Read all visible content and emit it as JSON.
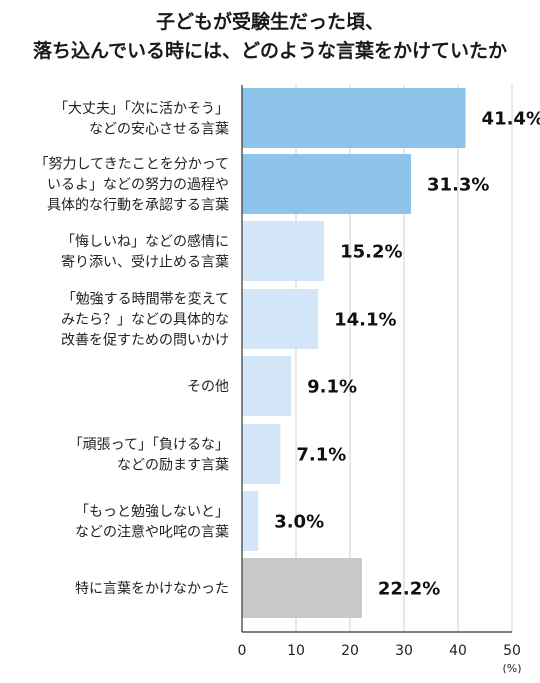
{
  "chart_data": {
    "type": "bar",
    "orientation": "horizontal",
    "title_lines": [
      "子どもが受験生だった頃、",
      "落ち込んでいる時には、どのような言葉をかけていたか"
    ],
    "categories": [
      [
        "「大丈夫」「次に活かそう」",
        "などの安心させる言葉"
      ],
      [
        "「努力してきたことを分かって",
        "いるよ」などの努力の過程や",
        "具体的な行動を承認する言葉"
      ],
      [
        "「悔しいね」などの感情に",
        "寄り添い、受け止める言葉"
      ],
      [
        "「勉強する時間帯を変えて",
        "みたら？」などの具体的な",
        "改善を促すための問いかけ"
      ],
      [
        "その他"
      ],
      [
        "「頑張って」「負けるな」",
        "などの励ます言葉"
      ],
      [
        "「もっと勉強しないと」",
        "などの注意や叱咤の言葉"
      ],
      [
        "特に言葉をかけなかった"
      ]
    ],
    "values": [
      41.4,
      31.3,
      15.2,
      14.1,
      9.1,
      7.1,
      3.0,
      22.2
    ],
    "value_labels": [
      "41.4%",
      "31.3%",
      "15.2%",
      "14.1%",
      "9.1%",
      "7.1%",
      "3.0%",
      "22.2%"
    ],
    "bar_colors": [
      "#8ec3ea",
      "#8ec3ea",
      "#d2e6f8",
      "#d2e6f8",
      "#d2e6f8",
      "#d2e6f8",
      "#d2e6f8",
      "#c8c8c8"
    ],
    "xlim": [
      0,
      50
    ],
    "xticks": [
      0,
      10,
      20,
      30,
      40,
      50
    ],
    "xtick_labels": [
      "0",
      "10",
      "20",
      "30",
      "40",
      "50"
    ],
    "unit": "(%)",
    "grid": true
  }
}
